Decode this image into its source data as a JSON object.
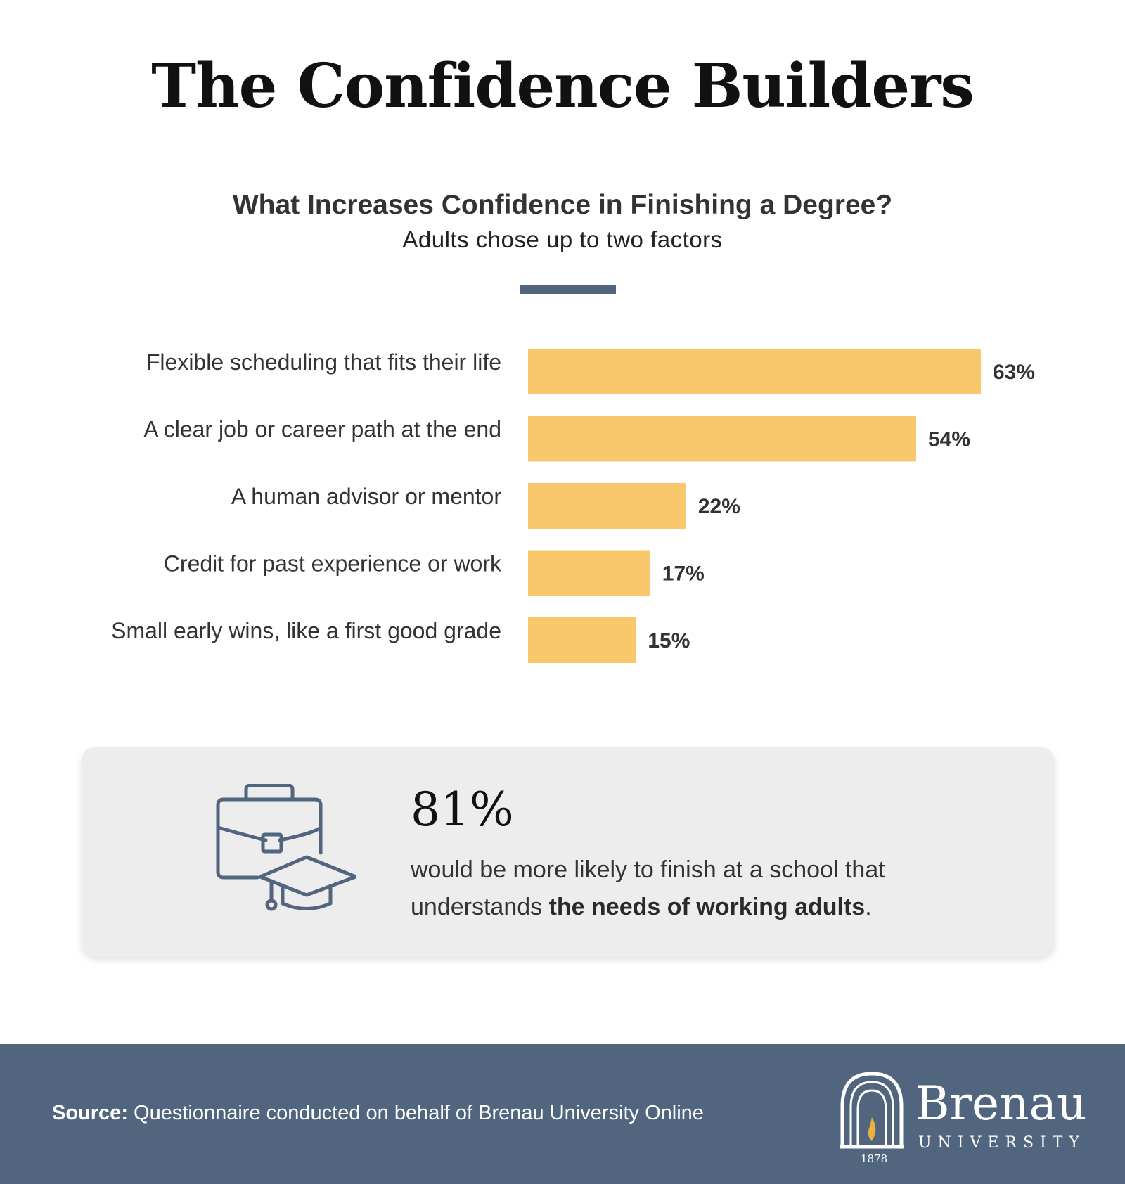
{
  "header": {
    "title": "The Confidence Builders"
  },
  "chart_data": {
    "type": "bar",
    "orientation": "horizontal",
    "title": "What Increases Confidence in Finishing a Degree?",
    "subtitle": "Adults chose up to two factors",
    "categories": [
      "Flexible scheduling that fits their life",
      "A clear job or career path at the end",
      "A human advisor or mentor",
      "Credit for past experience or work",
      "Small early wins, like a first good grade"
    ],
    "values": [
      63,
      54,
      22,
      17,
      15
    ],
    "value_labels": [
      "63%",
      "54%",
      "22%",
      "17%",
      "15%"
    ],
    "unit": "%",
    "xlim": [
      0,
      63
    ],
    "bar_color": "#f9c86d",
    "grid": false,
    "legend": "none"
  },
  "callout": {
    "icon": "briefcase-graduation-cap-icon",
    "stat": "81%",
    "text_before": "would be more likely to finish at a school that understands ",
    "text_bold": "the needs of working adults",
    "text_after": "."
  },
  "footer": {
    "source_label": "Source:",
    "source_text": " Questionnaire conducted on behalf of Brenau University Online",
    "logo_name": "Brenau",
    "logo_sub": "UNIVERSITY",
    "logo_year": "1878",
    "logo_icon": "arch-flame-icon"
  },
  "colors": {
    "accent": "#51657f",
    "bar": "#f9c86d",
    "flame": "#e8b33c",
    "callout_bg": "#ededed"
  }
}
